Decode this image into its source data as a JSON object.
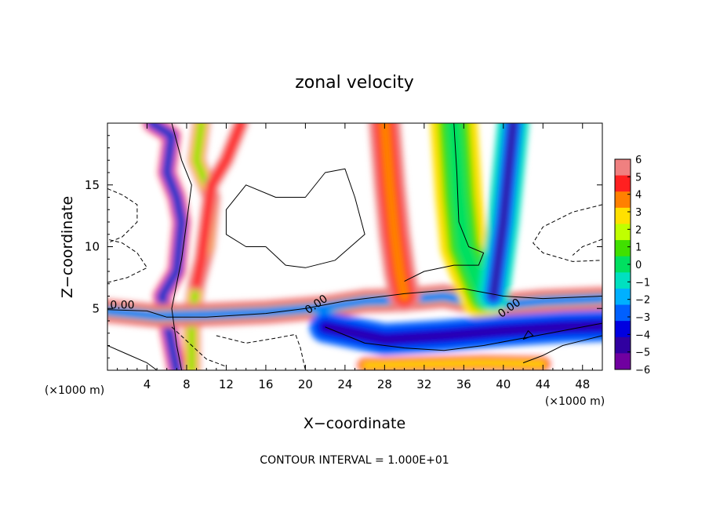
{
  "chart_data": {
    "type": "heatmap",
    "title": "zonal velocity",
    "xlabel": "X−coordinate",
    "ylabel": "Z−coordinate",
    "x_unit_left": "(×1000 m)",
    "x_unit_right": "(×1000 m)",
    "footer": "CONTOUR INTERVAL = 1.000E+01",
    "xlim": [
      0,
      50
    ],
    "ylim": [
      0,
      20
    ],
    "x_ticks": [
      4,
      8,
      12,
      16,
      20,
      24,
      28,
      32,
      36,
      40,
      44,
      48
    ],
    "y_ticks": [
      5,
      10,
      15
    ],
    "colorbar": {
      "levels": [
        -6,
        -5,
        -4,
        -3,
        -2,
        -1,
        0,
        1,
        2,
        3,
        4,
        5,
        6
      ],
      "labels": [
        "6",
        "5",
        "4",
        "3",
        "2",
        "1",
        "0",
        "−1",
        "−2",
        "−3",
        "−4",
        "−5",
        "−6"
      ],
      "colors": [
        "#f08080",
        "#ff2020",
        "#ff8000",
        "#ffe000",
        "#c0ff00",
        "#40e000",
        "#00e060",
        "#00e0c0",
        "#00b0ff",
        "#0060ff",
        "#0000e0",
        "#3000a0",
        "#7000a0"
      ]
    },
    "contour_labels": [
      {
        "x": 1.5,
        "z": 5.0,
        "text": "0.00"
      },
      {
        "x": 21.3,
        "z": 5.1,
        "text": "0.00"
      },
      {
        "x": 40.8,
        "z": 4.8,
        "text": "0.00"
      }
    ],
    "bands": [
      {
        "name": "left column",
        "points": [
          [
            4.5,
            20
          ],
          [
            6.5,
            19
          ],
          [
            6,
            16
          ],
          [
            7,
            14
          ],
          [
            7.5,
            12
          ],
          [
            7,
            8
          ],
          [
            5.5,
            6
          ],
          [
            6,
            4
          ],
          [
            7,
            0
          ]
        ]
      },
      {
        "name": "upper left plume",
        "points": [
          [
            9.5,
            20
          ],
          [
            9,
            17
          ],
          [
            10.5,
            14
          ],
          [
            10,
            10
          ],
          [
            9,
            7
          ],
          [
            8.5,
            4
          ],
          [
            8.5,
            0
          ]
        ]
      },
      {
        "name": "outer left plume",
        "points": [
          [
            13.5,
            20
          ],
          [
            12,
            17
          ],
          [
            10.5,
            15
          ],
          [
            10,
            12
          ],
          [
            9.5,
            9
          ],
          [
            9,
            7
          ]
        ]
      },
      {
        "name": "shear layer",
        "points": [
          [
            0,
            4.8
          ],
          [
            5,
            4.4
          ],
          [
            10,
            4.5
          ],
          [
            16,
            4.7
          ],
          [
            22,
            5.1
          ],
          [
            26,
            5.6
          ],
          [
            30,
            5.7
          ],
          [
            34,
            6.0
          ],
          [
            37,
            5.5
          ],
          [
            40,
            5.3
          ],
          [
            44,
            5.6
          ],
          [
            50,
            5.8
          ]
        ]
      },
      {
        "name": "right column",
        "points": [
          [
            28,
            20
          ],
          [
            28.5,
            15
          ],
          [
            29,
            11
          ],
          [
            29.5,
            8
          ],
          [
            30,
            6
          ]
        ]
      },
      {
        "name": "core column",
        "points": [
          [
            35,
            20
          ],
          [
            35.5,
            14
          ],
          [
            36,
            10
          ],
          [
            37,
            8
          ],
          [
            38,
            6
          ]
        ]
      },
      {
        "name": "east column",
        "points": [
          [
            41,
            20
          ],
          [
            40.5,
            16
          ],
          [
            40,
            12
          ],
          [
            39.5,
            9
          ],
          [
            39,
            6
          ]
        ]
      },
      {
        "name": "lower shear",
        "points": [
          [
            22,
            3.5
          ],
          [
            28,
            2.5
          ],
          [
            34,
            2.8
          ],
          [
            40,
            3.2
          ],
          [
            46,
            3.5
          ],
          [
            50,
            3.6
          ]
        ]
      },
      {
        "name": "surface layer",
        "points": [
          [
            26,
            0.4
          ],
          [
            32,
            0.5
          ],
          [
            38,
            0.6
          ],
          [
            44,
            0.5
          ]
        ]
      }
    ],
    "contours": [
      {
        "style": "solid",
        "points": [
          [
            0,
            4.9
          ],
          [
            4,
            4.8
          ],
          [
            6,
            4.3
          ],
          [
            10,
            4.3
          ],
          [
            16,
            4.6
          ],
          [
            20,
            5.0
          ],
          [
            24,
            5.6
          ],
          [
            30,
            6.2
          ],
          [
            36,
            6.6
          ],
          [
            40,
            6.0
          ],
          [
            44,
            5.8
          ],
          [
            50,
            6.0
          ]
        ]
      },
      {
        "style": "solid",
        "points": [
          [
            6.5,
            20
          ],
          [
            7.5,
            17
          ],
          [
            8.5,
            15
          ],
          [
            8,
            12
          ],
          [
            7.5,
            9
          ],
          [
            7,
            7
          ],
          [
            6.5,
            5
          ],
          [
            7,
            2
          ],
          [
            7.5,
            0
          ]
        ]
      },
      {
        "style": "solid",
        "points": [
          [
            35,
            20
          ],
          [
            35.3,
            16
          ],
          [
            35.5,
            12
          ],
          [
            36.5,
            10
          ],
          [
            38,
            9.5
          ],
          [
            37.5,
            8.5
          ],
          [
            35,
            8.5
          ],
          [
            32,
            8
          ],
          [
            30,
            7.2
          ]
        ]
      },
      {
        "style": "solid",
        "points": [
          [
            16,
            10
          ],
          [
            18,
            8.5
          ],
          [
            20,
            8.3
          ],
          [
            23,
            8.9
          ],
          [
            26,
            11
          ],
          [
            25,
            14
          ],
          [
            24,
            16.3
          ],
          [
            22,
            16
          ],
          [
            20,
            14
          ],
          [
            17,
            14
          ],
          [
            14,
            15
          ],
          [
            12,
            13
          ],
          [
            12,
            11
          ],
          [
            14,
            10
          ],
          [
            16,
            10
          ]
        ]
      },
      {
        "style": "solid",
        "points": [
          [
            22,
            3.5
          ],
          [
            26,
            2.2
          ],
          [
            30,
            1.8
          ],
          [
            34,
            1.6
          ],
          [
            38,
            2.0
          ],
          [
            42,
            2.6
          ],
          [
            46,
            3.2
          ],
          [
            50,
            3.8
          ]
        ]
      },
      {
        "style": "solid",
        "points": [
          [
            42,
            0.6
          ],
          [
            44,
            1.2
          ],
          [
            46,
            2.0
          ],
          [
            48,
            2.4
          ],
          [
            50,
            2.8
          ]
        ]
      },
      {
        "style": "solid",
        "points": [
          [
            42,
            2.5
          ],
          [
            43,
            2.8
          ],
          [
            42.5,
            3.2
          ],
          [
            42,
            2.5
          ]
        ]
      },
      {
        "style": "solid",
        "points": [
          [
            0,
            2
          ],
          [
            2,
            1.3
          ],
          [
            4,
            0.6
          ],
          [
            5,
            0
          ]
        ]
      },
      {
        "style": "dashed",
        "points": [
          [
            0,
            14.7
          ],
          [
            1.5,
            14.2
          ],
          [
            3,
            13.4
          ],
          [
            3,
            12
          ],
          [
            1.5,
            10.8
          ],
          [
            0,
            10.3
          ]
        ]
      },
      {
        "style": "dashed",
        "points": [
          [
            0,
            7.1
          ],
          [
            2,
            7.5
          ],
          [
            4,
            8.3
          ],
          [
            3,
            9.5
          ],
          [
            1.5,
            10.3
          ],
          [
            0,
            10.6
          ]
        ]
      },
      {
        "style": "dashed",
        "points": [
          [
            11,
            2.8
          ],
          [
            14,
            2.2
          ],
          [
            17,
            2.6
          ],
          [
            19,
            2.9
          ],
          [
            19.5,
            1.8
          ],
          [
            20,
            0
          ]
        ]
      },
      {
        "style": "dashed",
        "points": [
          [
            6.5,
            3.5
          ],
          [
            10,
            0.9
          ],
          [
            12,
            0.3
          ]
        ]
      },
      {
        "style": "dashed",
        "points": [
          [
            50,
            13.4
          ],
          [
            47,
            12.8
          ],
          [
            44,
            11.6
          ],
          [
            43,
            10.3
          ],
          [
            44,
            9.5
          ],
          [
            47,
            8.8
          ],
          [
            50,
            8.9
          ]
        ]
      },
      {
        "style": "dashed",
        "points": [
          [
            50,
            10.6
          ],
          [
            48,
            10.0
          ],
          [
            47,
            9.3
          ]
        ]
      }
    ]
  }
}
